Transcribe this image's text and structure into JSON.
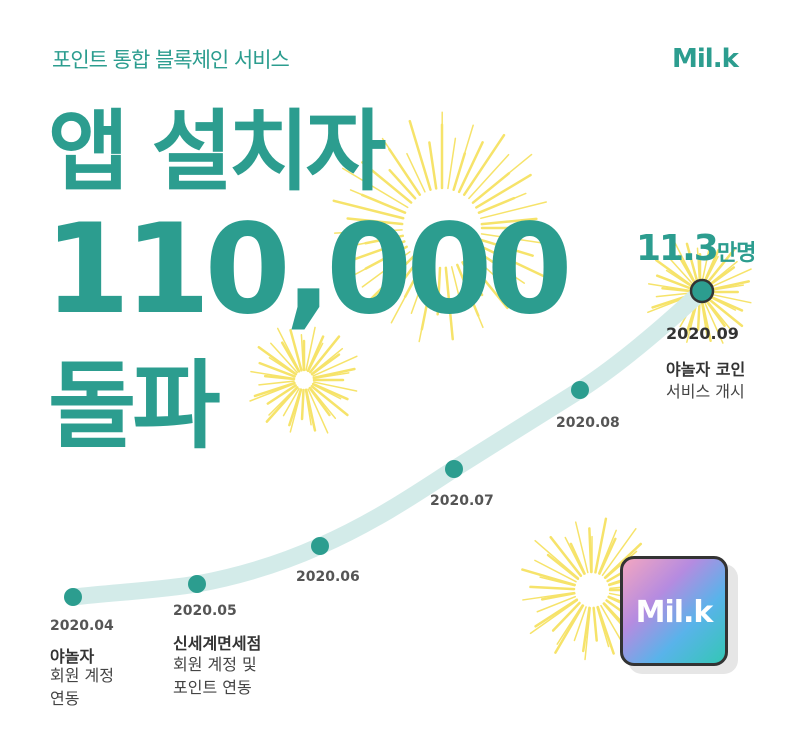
{
  "header": {
    "subtitle": "포인트 통합 블록체인 서비스",
    "brand": "Mil.k"
  },
  "headline": {
    "line1": "앱 설치자",
    "line2": "110,000",
    "line3": "돌파"
  },
  "timeline": [
    {
      "date": "2020.04",
      "title": "야놀자",
      "desc1": "회원 계정",
      "desc2": "연동"
    },
    {
      "date": "2020.05",
      "title": "신세계면세점",
      "desc1": "회원 계정 및",
      "desc2": "포인트 연동"
    },
    {
      "date": "2020.06"
    },
    {
      "date": "2020.07"
    },
    {
      "date": "2020.08"
    },
    {
      "date": "2020.09",
      "title": "야놀자 코인",
      "desc1": "서비스 개시"
    }
  ],
  "final": {
    "count": "11.3",
    "unit": "만명"
  },
  "app_icon": {
    "label": "Mil.k"
  },
  "colors": {
    "brand": "#2c9d8f",
    "track": "#d3ebe9",
    "firework": "#f6e36a"
  }
}
